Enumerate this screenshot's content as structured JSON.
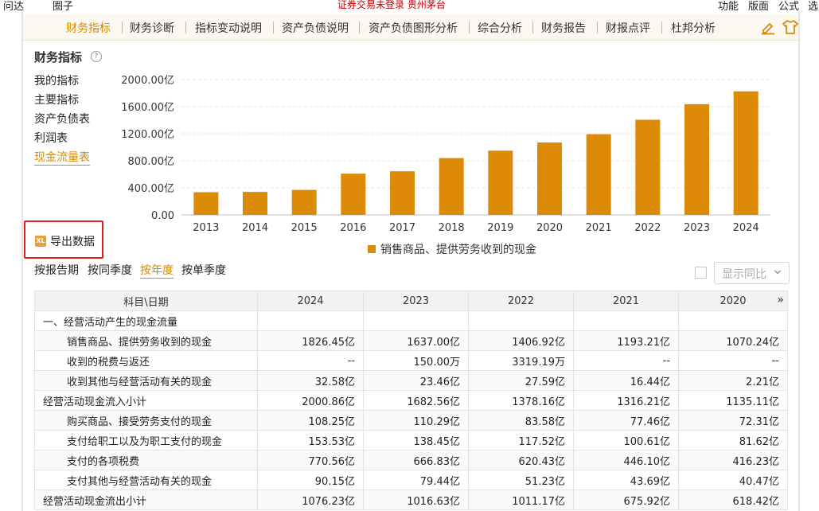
{
  "topbar": {
    "items_left": [
      "问达",
      "圈子"
    ],
    "center_text": "证券交易未登录 贵州茅台",
    "items_right": [
      "功能",
      "版面",
      "公式",
      "选"
    ]
  },
  "nav": {
    "tabs": [
      "财务指标",
      "财务诊断",
      "指标变动说明",
      "资产负债说明",
      "资产负债图形分析",
      "综合分析",
      "财务报告",
      "财报点评",
      "杜邦分析"
    ],
    "active_index": 0
  },
  "section": {
    "title": "财务指标",
    "help": "?"
  },
  "sidenav": {
    "items": [
      "我的指标",
      "主要指标",
      "资产负债表",
      "利润表",
      "现金流量表"
    ],
    "active_index": 4
  },
  "export": {
    "label": "导出数据",
    "icon_text": "XL"
  },
  "chart_data": {
    "type": "bar",
    "categories": [
      "2013",
      "2014",
      "2015",
      "2016",
      "2017",
      "2018",
      "2019",
      "2020",
      "2021",
      "2022",
      "2023",
      "2024"
    ],
    "series": [
      {
        "name": "销售商品、提供劳务收到的现金",
        "values": [
          335,
          340,
          370,
          610,
          645,
          840,
          950,
          1070.24,
          1193.21,
          1406.92,
          1637.0,
          1826.45
        ]
      }
    ],
    "y_ticks": [
      "0.00",
      "400.00亿",
      "800.00亿",
      "1200.00亿",
      "1600.00亿",
      "2000.00亿"
    ],
    "ylim": [
      0,
      2000
    ],
    "color": "#dd8a06",
    "grid": true,
    "legend_position": "bottom"
  },
  "periods": {
    "items": [
      "按报告期",
      "按同季度",
      "按年度",
      "按单季度"
    ],
    "active_index": 2
  },
  "compare": {
    "label": "显示同比"
  },
  "table": {
    "header": [
      "科目\\日期",
      "2024",
      "2023",
      "2022",
      "2021",
      "2020"
    ],
    "more": "»",
    "rows": [
      {
        "label": "一、经营活动产生的现金流量",
        "level": 0,
        "values": [
          "",
          "",
          "",
          "",
          ""
        ]
      },
      {
        "label": "销售商品、提供劳务收到的现金",
        "level": 1,
        "values": [
          "1826.45亿",
          "1637.00亿",
          "1406.92亿",
          "1193.21亿",
          "1070.24亿"
        ]
      },
      {
        "label": "收到的税费与返还",
        "level": 1,
        "values": [
          "--",
          "150.00万",
          "3319.19万",
          "--",
          "--"
        ]
      },
      {
        "label": "收到其他与经营活动有关的现金",
        "level": 1,
        "values": [
          "32.58亿",
          "23.46亿",
          "27.59亿",
          "16.44亿",
          "2.21亿"
        ]
      },
      {
        "label": "经营活动现金流入小计",
        "level": 0,
        "values": [
          "2000.86亿",
          "1682.56亿",
          "1378.16亿",
          "1316.21亿",
          "1135.11亿"
        ]
      },
      {
        "label": "购买商品、接受劳务支付的现金",
        "level": 1,
        "values": [
          "108.25亿",
          "110.29亿",
          "83.58亿",
          "77.46亿",
          "72.31亿"
        ]
      },
      {
        "label": "支付给职工以及为职工支付的现金",
        "level": 1,
        "values": [
          "153.53亿",
          "138.45亿",
          "117.52亿",
          "100.61亿",
          "81.62亿"
        ]
      },
      {
        "label": "支付的各项税费",
        "level": 1,
        "values": [
          "770.56亿",
          "666.83亿",
          "620.43亿",
          "446.10亿",
          "416.23亿"
        ]
      },
      {
        "label": "支付其他与经营活动有关的现金",
        "level": 1,
        "values": [
          "90.15亿",
          "79.44亿",
          "51.23亿",
          "43.69亿",
          "40.47亿"
        ]
      },
      {
        "label": "经营活动现金流出小计",
        "level": 0,
        "values": [
          "1076.23亿",
          "1016.63亿",
          "1011.17亿",
          "675.92亿",
          "618.42亿"
        ]
      }
    ]
  }
}
